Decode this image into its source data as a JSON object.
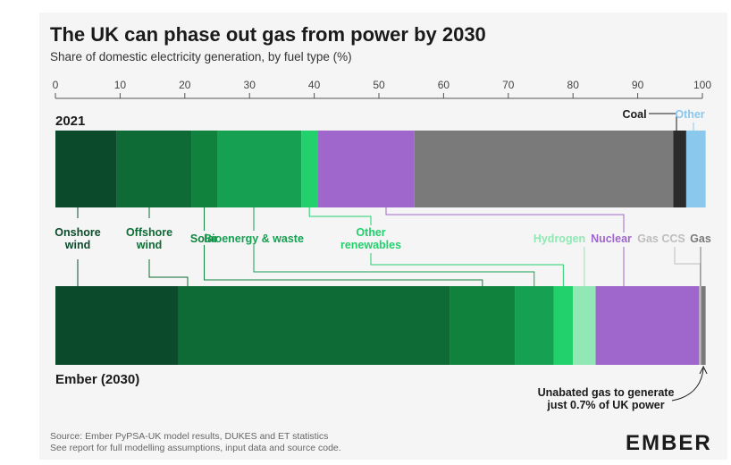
{
  "title": "The UK can phase out gas from power by 2030",
  "subtitle": "Share of domestic electricity generation, by fuel type (%)",
  "source_lines": [
    "Source: Ember PyPSA-UK model results, DUKES and ET statistics",
    "See report for full modelling assumptions, input data and source code."
  ],
  "logo": "EMBER",
  "chart_data": {
    "type": "bar",
    "stacked": true,
    "orientation": "horizontal",
    "xlim": [
      0,
      100
    ],
    "ticks": [
      0,
      10,
      20,
      30,
      40,
      50,
      60,
      70,
      80,
      90,
      100
    ],
    "categories": [
      "2021",
      "Ember (2030)"
    ],
    "series": [
      {
        "name": "Onshore wind",
        "values": [
          9.5,
          19.0
        ],
        "color": "#0b4a2a"
      },
      {
        "name": "Offshore wind",
        "values": [
          11.5,
          42.0
        ],
        "color": "#0e6b35"
      },
      {
        "name": "Solar",
        "values": [
          4.0,
          10.0
        ],
        "color": "#10823e"
      },
      {
        "name": "Bioenergy & waste",
        "values": [
          13.0,
          6.0
        ],
        "color": "#16a052"
      },
      {
        "name": "Other renewables",
        "values": [
          2.5,
          3.0
        ],
        "color": "#22d06c"
      },
      {
        "name": "Hydrogen",
        "values": [
          0.0,
          3.5
        ],
        "color": "#92e8b4"
      },
      {
        "name": "Nuclear",
        "values": [
          15.0,
          16.0
        ],
        "color": "#9f66cc"
      },
      {
        "name": "Gas CCS",
        "values": [
          0.0,
          0.3
        ],
        "color": "#bdbdbd"
      },
      {
        "name": "Gas",
        "values": [
          40.0,
          0.7
        ],
        "color": "#7a7a7a"
      },
      {
        "name": "Coal",
        "values": [
          2.0,
          0.0
        ],
        "color": "#2b2b2b"
      },
      {
        "name": "Other",
        "values": [
          3.0,
          0.0
        ],
        "color": "#8ac8ee"
      }
    ],
    "annotation": "Unabated gas to generate\njust 0.7% of UK power"
  }
}
